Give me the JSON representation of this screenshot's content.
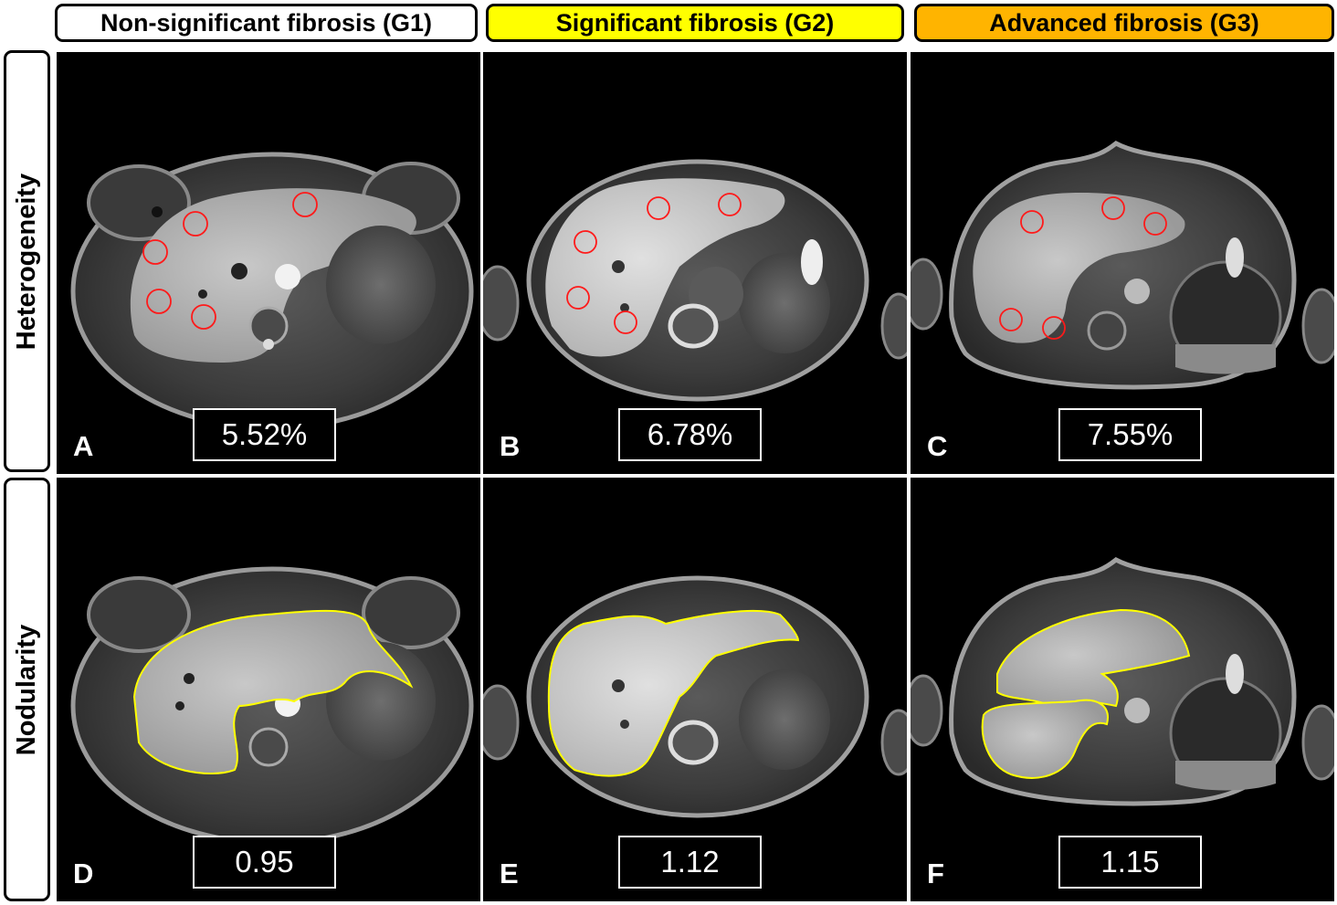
{
  "columns": [
    {
      "label": "Non-significant fibrosis (G1)",
      "color": "#ffffff"
    },
    {
      "label": "Significant fibrosis (G2)",
      "color": "#ffff00"
    },
    {
      "label": "Advanced fibrosis (G3)",
      "color": "#ffb400"
    }
  ],
  "rows": [
    {
      "label": "Heterogeneity"
    },
    {
      "label": "Nodularity"
    }
  ],
  "panels": {
    "A": {
      "letter": "A",
      "value": "5.52%"
    },
    "B": {
      "letter": "B",
      "value": "6.78%"
    },
    "C": {
      "letter": "C",
      "value": "7.55%"
    },
    "D": {
      "letter": "D",
      "value": "0.95"
    },
    "E": {
      "letter": "E",
      "value": "1.12"
    },
    "F": {
      "letter": "F",
      "value": "1.15"
    }
  },
  "colors": {
    "roi_circle": "#ff1a1a",
    "liver_contour": "#ffff00"
  }
}
